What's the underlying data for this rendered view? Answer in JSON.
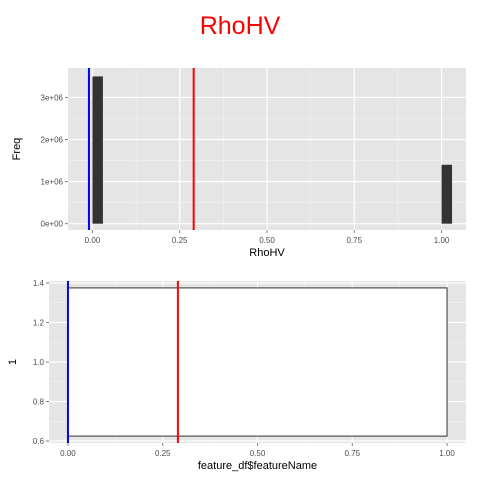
{
  "title": "RhoHV",
  "colors": {
    "panel": "#e5e5e5",
    "grid": "#ffffff",
    "bar": "#333333",
    "line_red": "#ff0000",
    "line_blue": "#0000ff",
    "title": "#ff0000"
  },
  "chart_data": [
    {
      "type": "bar",
      "xlabel": "RhoHV",
      "ylabel": "Freq",
      "xlim": [
        -0.07,
        1.07
      ],
      "ylim": [
        -150000,
        3700000
      ],
      "xticks": [
        0.0,
        0.25,
        0.5,
        0.75,
        1.0
      ],
      "xtick_labels": [
        "0.00",
        "0.25",
        "0.50",
        "0.75",
        "1.00"
      ],
      "yticks": [
        0,
        1000000,
        2000000,
        3000000
      ],
      "ytick_labels": [
        "0e+00",
        "1e+06",
        "2e+06",
        "3e+06"
      ],
      "bins": [
        {
          "x0": 0.0,
          "x1": 0.03,
          "value": 3500000
        },
        {
          "x0": 1.0,
          "x1": 1.03,
          "value": 1400000
        }
      ],
      "vlines": [
        {
          "x": 0.29,
          "color": "red"
        },
        {
          "x": -0.01,
          "color": "blue"
        }
      ]
    },
    {
      "type": "box",
      "xlabel": "feature_df$featureName",
      "ylabel": "1",
      "xlim": [
        -0.05,
        1.05
      ],
      "ylim": [
        0.59,
        1.41
      ],
      "xticks": [
        0.0,
        0.25,
        0.5,
        0.75,
        1.0
      ],
      "xtick_labels": [
        "0.00",
        "0.25",
        "0.50",
        "0.75",
        "1.00"
      ],
      "yticks": [
        0.6,
        0.8,
        1.0,
        1.2,
        1.4
      ],
      "ytick_labels": [
        "0.6",
        "0.8",
        "1.0",
        "1.2",
        "1.4"
      ],
      "box": {
        "x0": 0.0,
        "x1": 1.0,
        "y0": 0.625,
        "y1": 1.375
      },
      "vlines": [
        {
          "x": 0.29,
          "color": "red"
        },
        {
          "x": 0.0,
          "color": "blue"
        }
      ]
    }
  ]
}
